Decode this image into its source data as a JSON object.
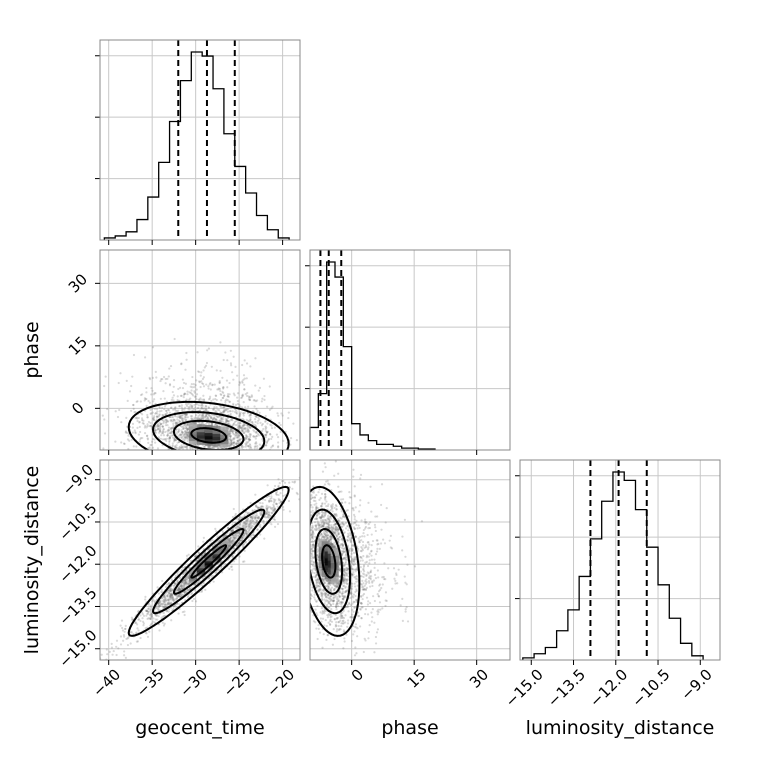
{
  "chart_data": {
    "type": "corner",
    "parameters": [
      {
        "name": "geocent_time",
        "label": "geocent_time",
        "range": [
          -41,
          -18
        ],
        "ticks": [
          -40,
          -35,
          -30,
          -25,
          -20
        ],
        "tick_labels": [
          "−40",
          "−35",
          "−30",
          "−25",
          "−20"
        ],
        "quantiles": [
          -32,
          -28.7,
          -25.5
        ]
      },
      {
        "name": "phase",
        "label": "phase",
        "range": [
          -10,
          38
        ],
        "ticks": [
          0,
          15,
          30
        ],
        "tick_labels": [
          "0",
          "15",
          "30"
        ],
        "quantiles": [
          -7.5,
          -5.5,
          -2.5
        ]
      },
      {
        "name": "luminosity_distance",
        "label": "luminosity_distance",
        "range": [
          -15.4,
          -8.3
        ],
        "ticks": [
          -15.0,
          -13.5,
          -12.0,
          -10.5,
          -9.0
        ],
        "tick_labels": [
          "−15.0",
          "−13.5",
          "−12.0",
          "−10.5",
          "−9.0"
        ],
        "quantiles": [
          -12.9,
          -11.9,
          -10.9
        ]
      }
    ],
    "histograms": {
      "geocent_time": {
        "bin_edges": [
          -40.5,
          -39.25,
          -38.0,
          -36.75,
          -35.5,
          -34.25,
          -33.0,
          -31.75,
          -30.5,
          -29.25,
          -28.0,
          -26.75,
          -25.5,
          -24.25,
          -23.0,
          -21.75,
          -20.5,
          -19.25
        ],
        "counts": [
          1,
          2,
          4,
          10,
          21,
          38,
          58,
          78,
          92,
          90,
          74,
          52,
          36,
          23,
          12,
          5,
          1
        ]
      },
      "phase": {
        "bin_edges": [
          -10,
          -8,
          -6,
          -4,
          -2,
          0,
          2,
          4,
          6,
          8,
          10,
          12,
          14,
          16,
          18,
          20
        ],
        "counts": [
          12,
          30,
          100,
          92,
          55,
          14,
          8,
          5,
          3,
          3,
          2,
          1,
          1,
          0.5,
          0.5
        ]
      },
      "luminosity_distance": {
        "bin_edges": [
          -15.3,
          -14.9,
          -14.5,
          -14.1,
          -13.7,
          -13.3,
          -12.9,
          -12.5,
          -12.1,
          -11.7,
          -11.3,
          -10.9,
          -10.5,
          -10.1,
          -9.7,
          -9.3,
          -8.9
        ],
        "counts": [
          1,
          3,
          6,
          14,
          24,
          40,
          58,
          76,
          90,
          86,
          72,
          54,
          36,
          20,
          8,
          2
        ]
      }
    },
    "pairs": [
      {
        "x": "geocent_time",
        "y": "phase",
        "mean": [
          -28.5,
          -6.5
        ],
        "std": [
          4,
          3.5
        ],
        "corr": -0.25,
        "count": 2300
      },
      {
        "x": "geocent_time",
        "y": "luminosity_distance",
        "mean": [
          -28.5,
          -11.9
        ],
        "std": [
          4,
          1.15
        ],
        "corr": 0.96,
        "count": 2300
      },
      {
        "x": "phase",
        "y": "luminosity_distance",
        "mean": [
          -5.5,
          -11.9
        ],
        "std": [
          3.2,
          1.15
        ],
        "corr": -0.3,
        "count": 2300
      }
    ],
    "grid": true
  }
}
